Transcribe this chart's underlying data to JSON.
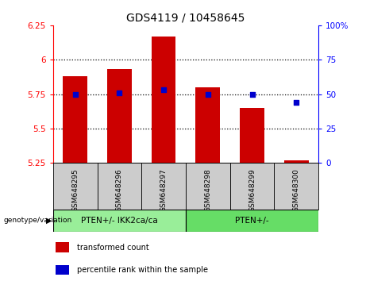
{
  "title": "GDS4119 / 10458645",
  "categories": [
    "GSM648295",
    "GSM648296",
    "GSM648297",
    "GSM648298",
    "GSM648299",
    "GSM648300"
  ],
  "bar_values": [
    5.88,
    5.93,
    6.17,
    5.8,
    5.65,
    5.27
  ],
  "bar_bottom": 5.25,
  "percentile_values": [
    50,
    51,
    53,
    50,
    50,
    44
  ],
  "ylim": [
    5.25,
    6.25
  ],
  "yticks": [
    5.25,
    5.5,
    5.75,
    6.0,
    6.25
  ],
  "ytick_labels": [
    "5.25",
    "5.5",
    "5.75",
    "6",
    "6.25"
  ],
  "right_yticks": [
    0,
    25,
    50,
    75,
    100
  ],
  "right_ytick_labels": [
    "0",
    "25",
    "50",
    "75",
    "100%"
  ],
  "bar_color": "#cc0000",
  "percentile_color": "#0000cc",
  "group1_label": "PTEN+/- IKK2ca/ca",
  "group2_label": "PTEN+/-",
  "group1_color": "#99ee99",
  "group2_color": "#66dd66",
  "group_label": "genotype/variation",
  "legend_bar_label": "transformed count",
  "legend_percentile_label": "percentile rank within the sample",
  "bar_width": 0.55,
  "xticklabel_bg": "#cccccc",
  "spine_color": "#aaaaaa"
}
